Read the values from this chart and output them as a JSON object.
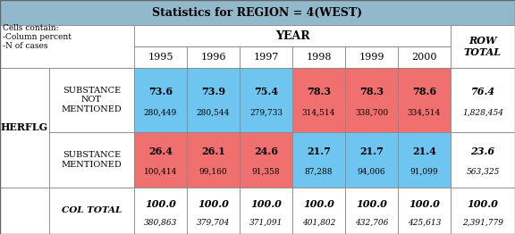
{
  "title": "Statistics for REGION = 4(WEST)",
  "title_bg": "#92b8cc",
  "header_year_label": "YEAR",
  "row_total_label": "ROW\nTOTAL",
  "col_header_labels": [
    "1995",
    "1996",
    "1997",
    "1998",
    "1999",
    "2000"
  ],
  "left_label": "HERFLG",
  "row_label_0": "SUBSTANCE\nNOT\nMENTIONED",
  "row_label_1": "SUBSTANCE\nMENTIONED",
  "row_label_2": "COL TOTAL",
  "cells_contain_text": "Cells contain:\n-Column percent\n-N of cases",
  "data": {
    "not_mentioned_pct": [
      "73.6",
      "73.9",
      "75.4",
      "78.3",
      "78.3",
      "78.6",
      "76.4"
    ],
    "not_mentioned_n": [
      "280,449",
      "280,544",
      "279,733",
      "314,514",
      "338,700",
      "334,514",
      "1,828,454"
    ],
    "mentioned_pct": [
      "26.4",
      "26.1",
      "24.6",
      "21.7",
      "21.7",
      "21.4",
      "23.6"
    ],
    "mentioned_n": [
      "100,414",
      "99,160",
      "91,358",
      "87,288",
      "94,006",
      "91,099",
      "563,325"
    ],
    "col_total_pct": [
      "100.0",
      "100.0",
      "100.0",
      "100.0",
      "100.0",
      "100.0",
      "100.0"
    ],
    "col_total_n": [
      "380,863",
      "379,704",
      "371,091",
      "401,802",
      "432,706",
      "425,613",
      "2,391,779"
    ]
  },
  "blue_light": "#6ec6f0",
  "red_light": "#f07070",
  "white": "#ffffff",
  "border_color": "#888888",
  "lw": 0.6,
  "title_fontsize": 9,
  "header_fontsize": 8,
  "pct_fontsize": 8,
  "n_fontsize": 6.5,
  "label_fontsize": 7,
  "herflg_fontsize": 8
}
